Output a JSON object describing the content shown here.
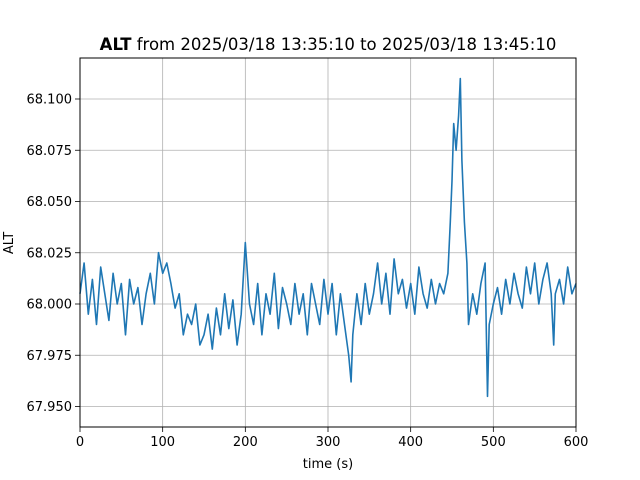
{
  "chart_data": {
    "type": "line",
    "title_bold": "ALT",
    "title_rest": " from 2025/03/18 13:35:10 to 2025/03/18 13:45:10",
    "xlabel": "time (s)",
    "ylabel": "ALT",
    "xlim": [
      0,
      600
    ],
    "ylim": [
      67.94,
      68.12
    ],
    "grid": true,
    "xticks": [
      0,
      100,
      200,
      300,
      400,
      500,
      600
    ],
    "xtick_labels": [
      "0",
      "100",
      "200",
      "300",
      "400",
      "500",
      "600"
    ],
    "yticks": [
      67.95,
      67.975,
      68.0,
      68.025,
      68.05,
      68.075,
      68.1
    ],
    "ytick_labels": [
      "67.950",
      "67.975",
      "68.000",
      "68.025",
      "68.050",
      "68.075",
      "68.100"
    ],
    "line_color": "#1f77b4",
    "series": [
      {
        "x": [
          0,
          5,
          10,
          15,
          20,
          25,
          30,
          35,
          40,
          45,
          50,
          55,
          60,
          65,
          70,
          75,
          80,
          85,
          90,
          95,
          100,
          105,
          110,
          115,
          120,
          125,
          130,
          135,
          140,
          145,
          150,
          155,
          160,
          165,
          170,
          175,
          180,
          185,
          190,
          195,
          200,
          205,
          210,
          215,
          220,
          225,
          230,
          235,
          240,
          245,
          250,
          255,
          260,
          265,
          270,
          275,
          280,
          285,
          290,
          295,
          300,
          305,
          310,
          315,
          320,
          325,
          328,
          330,
          335,
          340,
          345,
          350,
          355,
          360,
          365,
          370,
          375,
          380,
          385,
          390,
          395,
          400,
          405,
          410,
          415,
          420,
          425,
          430,
          435,
          440,
          445,
          448,
          450,
          452,
          455,
          458,
          460,
          462,
          465,
          468,
          470,
          475,
          480,
          485,
          490,
          493,
          495,
          500,
          505,
          510,
          515,
          520,
          525,
          530,
          535,
          540,
          545,
          550,
          555,
          560,
          565,
          570,
          573,
          575,
          580,
          585,
          590,
          595,
          600
        ],
        "values": [
          68.005,
          68.02,
          67.995,
          68.012,
          67.99,
          68.018,
          68.005,
          67.992,
          68.015,
          68.0,
          68.01,
          67.985,
          68.012,
          68.0,
          68.008,
          67.99,
          68.005,
          68.015,
          68.0,
          68.025,
          68.015,
          68.02,
          68.01,
          67.998,
          68.005,
          67.985,
          67.995,
          67.99,
          68.0,
          67.98,
          67.985,
          67.995,
          67.978,
          67.998,
          67.985,
          68.005,
          67.988,
          68.002,
          67.98,
          67.995,
          68.03,
          68.0,
          67.99,
          68.01,
          67.985,
          68.005,
          67.995,
          68.015,
          67.988,
          68.008,
          68.0,
          67.99,
          68.01,
          67.995,
          68.005,
          67.985,
          68.01,
          68.0,
          67.99,
          68.012,
          67.995,
          68.01,
          67.985,
          68.005,
          67.99,
          67.975,
          67.962,
          67.985,
          68.005,
          67.99,
          68.01,
          67.995,
          68.005,
          68.02,
          68.0,
          68.015,
          67.995,
          68.022,
          68.005,
          68.012,
          67.998,
          68.01,
          67.995,
          68.018,
          68.005,
          67.998,
          68.012,
          68.0,
          68.01,
          68.005,
          68.015,
          68.04,
          68.06,
          68.088,
          68.075,
          68.092,
          68.11,
          68.07,
          68.04,
          68.02,
          67.99,
          68.005,
          67.995,
          68.01,
          68.02,
          67.955,
          67.99,
          68.0,
          68.008,
          67.995,
          68.012,
          68.0,
          68.015,
          68.005,
          67.998,
          68.018,
          68.005,
          68.02,
          68.0,
          68.012,
          68.02,
          68.005,
          67.98,
          68.005,
          68.012,
          68.0,
          68.018,
          68.005,
          68.01
        ]
      }
    ]
  }
}
